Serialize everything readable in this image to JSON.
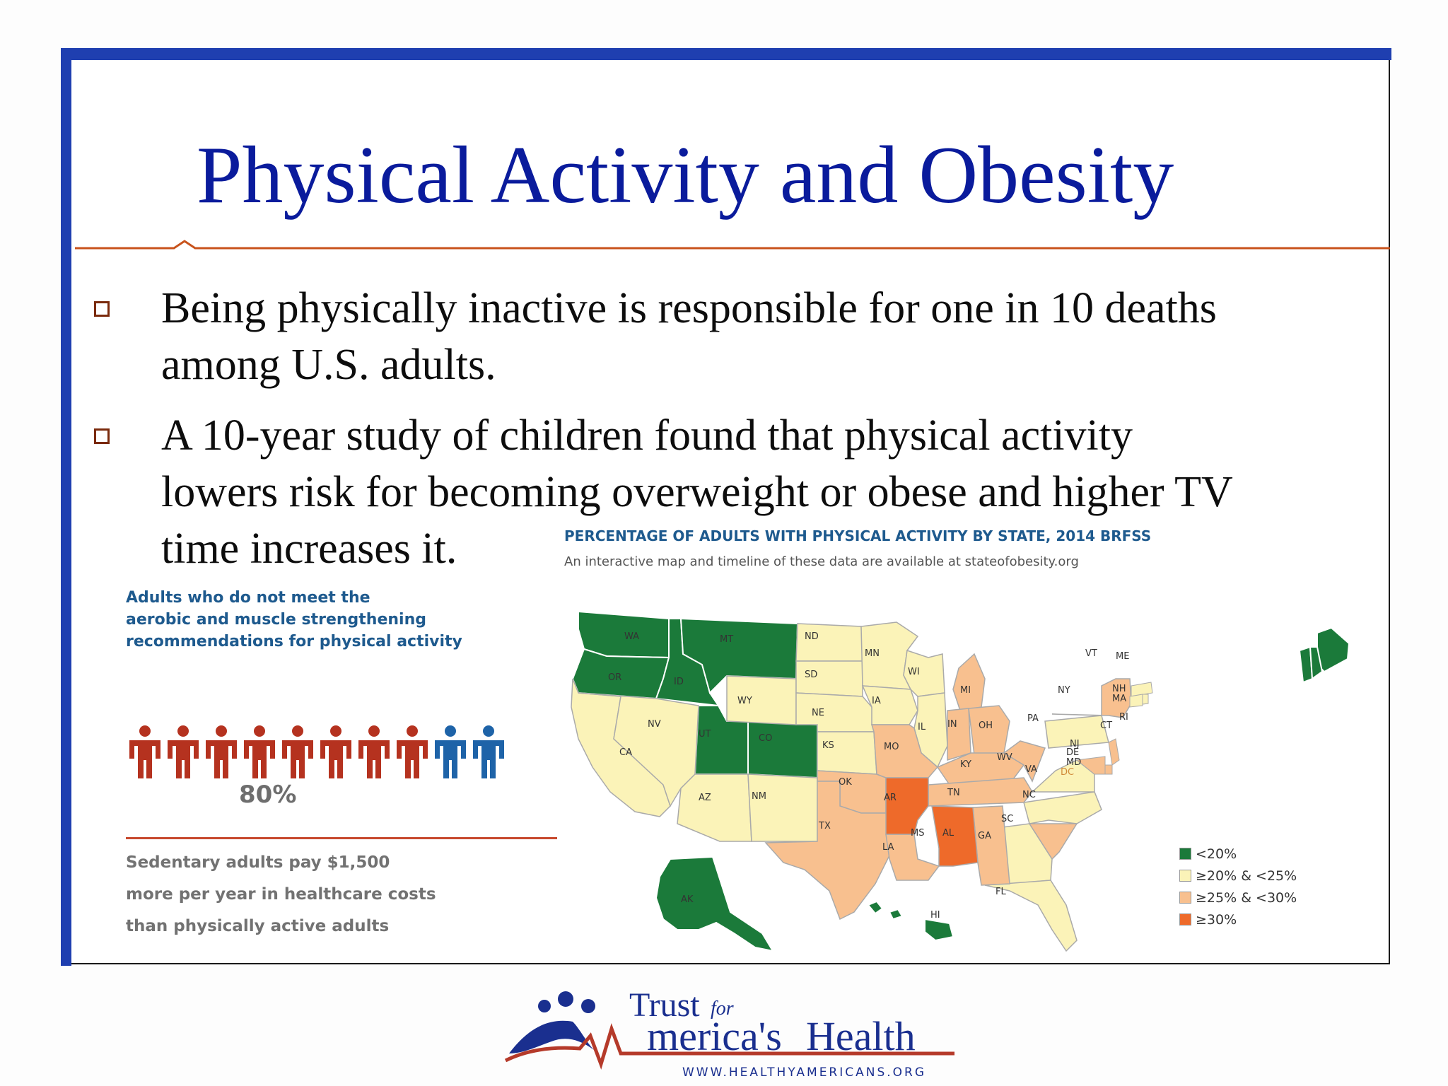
{
  "slide": {
    "title": "Physical Activity and Obesity",
    "bullets": [
      {
        "lines": [
          "Being physically inactive is responsible for one in 10 deaths",
          "among U.S. adults."
        ]
      },
      {
        "lines": [
          "A 10-year study of children found that physical activity",
          "lowers risk for becoming overweight or obese and higher TV",
          "time increases it."
        ]
      }
    ]
  },
  "inset": {
    "heading_lines": [
      "Adults who do not meet the",
      "aerobic and muscle strengthening",
      "recommendations for physical activity"
    ],
    "figures_total": 10,
    "figures_highlighted": 8,
    "percent_label": "80%",
    "cost_lines": [
      "Sedentary adults pay $1,500",
      "more per year in healthcare costs",
      "than physically active adults"
    ]
  },
  "map": {
    "title": "PERCENTAGE OF ADULTS WITH PHYSICAL ACTIVITY BY STATE, 2014 BRFSS",
    "subtitle": "An interactive map and timeline of these data are available at stateofobesity.org",
    "state_labels": {
      "WA": "WA",
      "OR": "OR",
      "CA": "CA",
      "ID": "ID",
      "NV": "NV",
      "MT": "MT",
      "WY": "WY",
      "UT": "UT",
      "AZ": "AZ",
      "CO": "CO",
      "NM": "NM",
      "ND": "ND",
      "SD": "SD",
      "NE": "NE",
      "KS": "KS",
      "OK": "OK",
      "TX": "TX",
      "MN": "MN",
      "IA": "IA",
      "MO": "MO",
      "AR": "AR",
      "LA": "LA",
      "WI": "WI",
      "IL": "IL",
      "MI": "MI",
      "IN": "IN",
      "OH": "OH",
      "KY": "KY",
      "TN": "TN",
      "MS": "MS",
      "AL": "AL",
      "GA": "GA",
      "FL": "FL",
      "SC": "SC",
      "NC": "NC",
      "VA": "VA",
      "WV": "WV",
      "PA": "PA",
      "NY": "NY",
      "VT": "VT",
      "ME": "ME",
      "NH": "NH",
      "MA": "MA",
      "RI": "RI",
      "CT": "CT",
      "NJ": "NJ",
      "DE": "DE",
      "MD": "MD",
      "DC": "DC",
      "AK": "AK",
      "HI": "HI"
    },
    "legend": [
      {
        "label": "<20%",
        "color": "#1b7a3a"
      },
      {
        "label": "≥20% & <25%",
        "color": "#fbf3b8"
      },
      {
        "label": "≥25% & <30%",
        "color": "#f8c08f"
      },
      {
        "label": "≥30%",
        "color": "#ee6a2a"
      }
    ]
  },
  "logo": {
    "word_trust": "Trust",
    "word_for": "for",
    "word_america": "merica's",
    "word_health": "Health",
    "url": "WWW.HEALTHYAMERICANS.ORG"
  }
}
